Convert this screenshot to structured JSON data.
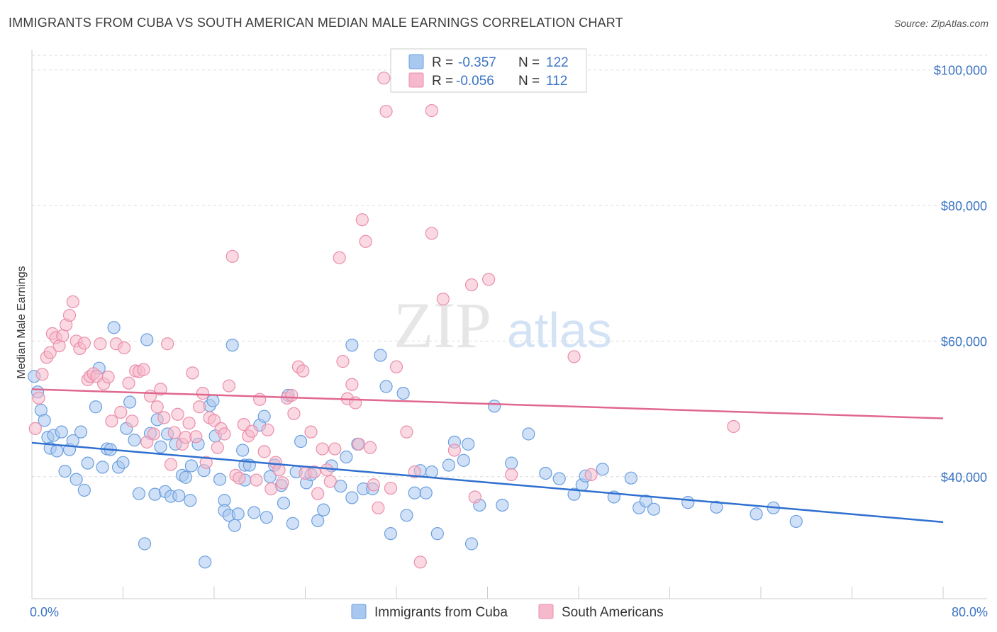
{
  "title": "IMMIGRANTS FROM CUBA VS SOUTH AMERICAN MEDIAN MALE EARNINGS CORRELATION CHART",
  "source": "Source: ZipAtlas.com",
  "watermark": {
    "zip": "ZIP",
    "atlas": "atlas"
  },
  "colors": {
    "blue_fill": "#a9c8f0",
    "blue_stroke": "#6b9fde",
    "blue_line": "#2f6fcf",
    "pink_fill": "#f6b9cb",
    "pink_stroke": "#ea8eac",
    "pink_line": "#e0678f",
    "tick_text": "#3b74c4",
    "grid": "#dddddd"
  },
  "legend": {
    "r_label": "R =",
    "n_label": "N =",
    "rows": [
      {
        "r": "-0.357",
        "n": "122",
        "color": "blue"
      },
      {
        "r": "-0.056",
        "n": "112",
        "color": "pink"
      }
    ]
  },
  "chart_data": {
    "type": "scatter",
    "xlabel": "",
    "ylabel": "Median Male Earnings",
    "xlim": [
      0,
      80
    ],
    "ylim": [
      22000,
      103000
    ],
    "x_tick_labels": [
      "0.0%",
      "80.0%"
    ],
    "y_ticks": [
      40000,
      60000,
      80000,
      100000
    ],
    "y_tick_labels": [
      "$40,000",
      "$60,000",
      "$80,000",
      "$100,000"
    ],
    "grid": true,
    "legend_position": "bottom",
    "series": [
      {
        "name": "Immigrants from Cuba",
        "color": "blue",
        "trend": {
          "x": [
            0,
            80
          ],
          "y": [
            45000,
            33300
          ]
        },
        "points": [
          [
            0.2,
            54800
          ],
          [
            0.5,
            52500
          ],
          [
            0.8,
            49800
          ],
          [
            1.1,
            48300
          ],
          [
            1.4,
            45800
          ],
          [
            1.6,
            44200
          ],
          [
            1.9,
            46100
          ],
          [
            2.2,
            43800
          ],
          [
            2.6,
            46600
          ],
          [
            2.9,
            40800
          ],
          [
            3.3,
            44000
          ],
          [
            3.6,
            45300
          ],
          [
            3.9,
            39600
          ],
          [
            4.3,
            46600
          ],
          [
            4.6,
            38000
          ],
          [
            4.9,
            42000
          ],
          [
            5.6,
            50300
          ],
          [
            5.9,
            56000
          ],
          [
            6.2,
            41400
          ],
          [
            6.6,
            44100
          ],
          [
            6.9,
            44000
          ],
          [
            7.2,
            62000
          ],
          [
            7.6,
            41400
          ],
          [
            8.0,
            42100
          ],
          [
            8.3,
            47100
          ],
          [
            8.6,
            51000
          ],
          [
            9.0,
            45400
          ],
          [
            9.4,
            37500
          ],
          [
            9.9,
            30100
          ],
          [
            10.1,
            60200
          ],
          [
            10.4,
            46400
          ],
          [
            10.8,
            37400
          ],
          [
            11.0,
            48400
          ],
          [
            11.3,
            44400
          ],
          [
            11.7,
            37800
          ],
          [
            11.9,
            46300
          ],
          [
            12.2,
            37100
          ],
          [
            12.6,
            44800
          ],
          [
            12.9,
            37200
          ],
          [
            13.2,
            40200
          ],
          [
            13.5,
            39900
          ],
          [
            13.9,
            36500
          ],
          [
            14.0,
            41600
          ],
          [
            14.6,
            44800
          ],
          [
            15.1,
            40900
          ],
          [
            15.2,
            27400
          ],
          [
            15.6,
            50500
          ],
          [
            15.9,
            51200
          ],
          [
            16.1,
            46000
          ],
          [
            16.5,
            39600
          ],
          [
            16.9,
            36500
          ],
          [
            16.9,
            35000
          ],
          [
            17.3,
            34300
          ],
          [
            17.6,
            59400
          ],
          [
            17.8,
            32800
          ],
          [
            18.1,
            34500
          ],
          [
            18.5,
            43900
          ],
          [
            18.7,
            39500
          ],
          [
            18.7,
            41700
          ],
          [
            19.1,
            41700
          ],
          [
            19.5,
            34700
          ],
          [
            20.0,
            47600
          ],
          [
            20.4,
            48900
          ],
          [
            20.6,
            34000
          ],
          [
            20.9,
            40000
          ],
          [
            21.3,
            41700
          ],
          [
            21.9,
            38700
          ],
          [
            22.1,
            36100
          ],
          [
            22.5,
            52000
          ],
          [
            22.9,
            33100
          ],
          [
            23.2,
            40700
          ],
          [
            23.6,
            45200
          ],
          [
            24.1,
            39100
          ],
          [
            24.5,
            40300
          ],
          [
            25.1,
            33500
          ],
          [
            25.6,
            35100
          ],
          [
            26.3,
            41600
          ],
          [
            27.1,
            38600
          ],
          [
            27.6,
            42900
          ],
          [
            28.1,
            59400
          ],
          [
            28.1,
            36900
          ],
          [
            28.6,
            44800
          ],
          [
            29.1,
            38200
          ],
          [
            29.9,
            38200
          ],
          [
            30.6,
            57900
          ],
          [
            31.1,
            53300
          ],
          [
            31.5,
            31600
          ],
          [
            32.6,
            52300
          ],
          [
            32.9,
            34300
          ],
          [
            33.6,
            37600
          ],
          [
            34.1,
            40900
          ],
          [
            34.6,
            37600
          ],
          [
            35.1,
            40700
          ],
          [
            35.6,
            31600
          ],
          [
            36.6,
            41700
          ],
          [
            37.1,
            45100
          ],
          [
            37.9,
            42400
          ],
          [
            38.3,
            44800
          ],
          [
            38.6,
            30100
          ],
          [
            39.3,
            35800
          ],
          [
            40.6,
            50400
          ],
          [
            41.3,
            35800
          ],
          [
            42.1,
            42000
          ],
          [
            43.6,
            46300
          ],
          [
            45.1,
            40500
          ],
          [
            46.3,
            39700
          ],
          [
            47.6,
            37400
          ],
          [
            48.3,
            38800
          ],
          [
            48.6,
            40100
          ],
          [
            50.1,
            41100
          ],
          [
            51.1,
            37000
          ],
          [
            52.6,
            39800
          ],
          [
            53.3,
            35400
          ],
          [
            53.9,
            36400
          ],
          [
            54.6,
            35200
          ],
          [
            57.6,
            36200
          ],
          [
            60.1,
            35500
          ],
          [
            63.6,
            34500
          ],
          [
            65.1,
            35400
          ],
          [
            67.1,
            33400
          ]
        ]
      },
      {
        "name": "South Americans",
        "color": "pink",
        "trend": {
          "x": [
            0,
            80
          ],
          "y": [
            52900,
            48600
          ]
        },
        "points": [
          [
            0.3,
            47100
          ],
          [
            0.6,
            51600
          ],
          [
            0.9,
            55100
          ],
          [
            1.3,
            57600
          ],
          [
            1.6,
            58300
          ],
          [
            1.8,
            61100
          ],
          [
            2.1,
            60500
          ],
          [
            2.4,
            59300
          ],
          [
            2.7,
            60800
          ],
          [
            3.0,
            62400
          ],
          [
            3.3,
            63800
          ],
          [
            3.6,
            65800
          ],
          [
            3.9,
            60000
          ],
          [
            4.2,
            58900
          ],
          [
            4.6,
            59700
          ],
          [
            4.9,
            54300
          ],
          [
            5.1,
            54800
          ],
          [
            5.4,
            55200
          ],
          [
            5.7,
            54800
          ],
          [
            6.0,
            59600
          ],
          [
            6.3,
            53700
          ],
          [
            6.7,
            54700
          ],
          [
            7.0,
            48200
          ],
          [
            7.4,
            59600
          ],
          [
            7.8,
            49500
          ],
          [
            8.1,
            59000
          ],
          [
            8.5,
            53800
          ],
          [
            8.8,
            48200
          ],
          [
            9.1,
            55600
          ],
          [
            9.4,
            55500
          ],
          [
            9.8,
            55800
          ],
          [
            10.1,
            45100
          ],
          [
            10.4,
            51900
          ],
          [
            10.7,
            46300
          ],
          [
            11.0,
            50300
          ],
          [
            11.3,
            52900
          ],
          [
            11.6,
            48700
          ],
          [
            11.9,
            59600
          ],
          [
            12.2,
            41800
          ],
          [
            12.5,
            46500
          ],
          [
            12.8,
            49200
          ],
          [
            13.2,
            44800
          ],
          [
            13.5,
            45800
          ],
          [
            13.8,
            47900
          ],
          [
            14.1,
            55300
          ],
          [
            14.4,
            45900
          ],
          [
            14.7,
            50300
          ],
          [
            15.0,
            52300
          ],
          [
            15.3,
            42100
          ],
          [
            15.6,
            48700
          ],
          [
            16.0,
            48300
          ],
          [
            16.3,
            44300
          ],
          [
            16.6,
            47100
          ],
          [
            16.9,
            46300
          ],
          [
            17.3,
            53400
          ],
          [
            17.6,
            72500
          ],
          [
            17.9,
            40200
          ],
          [
            18.2,
            39800
          ],
          [
            18.6,
            47700
          ],
          [
            19.0,
            46000
          ],
          [
            19.3,
            46700
          ],
          [
            19.7,
            39500
          ],
          [
            20.0,
            51400
          ],
          [
            20.4,
            43700
          ],
          [
            20.7,
            46900
          ],
          [
            21.0,
            38200
          ],
          [
            21.4,
            42100
          ],
          [
            21.7,
            41000
          ],
          [
            22.0,
            39100
          ],
          [
            22.4,
            51600
          ],
          [
            22.8,
            52000
          ],
          [
            23.0,
            49300
          ],
          [
            23.4,
            56200
          ],
          [
            23.8,
            55600
          ],
          [
            24.0,
            40500
          ],
          [
            24.5,
            46600
          ],
          [
            24.8,
            40700
          ],
          [
            25.1,
            37500
          ],
          [
            25.5,
            44100
          ],
          [
            25.9,
            41000
          ],
          [
            26.2,
            39300
          ],
          [
            26.6,
            44100
          ],
          [
            27.0,
            72300
          ],
          [
            27.3,
            57000
          ],
          [
            27.7,
            51500
          ],
          [
            28.1,
            53600
          ],
          [
            28.4,
            50900
          ],
          [
            28.7,
            44800
          ],
          [
            29.0,
            77900
          ],
          [
            29.3,
            74700
          ],
          [
            29.7,
            44300
          ],
          [
            30.0,
            38800
          ],
          [
            30.4,
            35400
          ],
          [
            30.9,
            98800
          ],
          [
            31.1,
            93900
          ],
          [
            31.5,
            38300
          ],
          [
            32.0,
            56200
          ],
          [
            32.9,
            46600
          ],
          [
            33.6,
            40700
          ],
          [
            34.1,
            27400
          ],
          [
            35.1,
            94000
          ],
          [
            35.1,
            75900
          ],
          [
            36.1,
            66200
          ],
          [
            37.1,
            43900
          ],
          [
            38.6,
            68300
          ],
          [
            38.9,
            37000
          ],
          [
            40.1,
            69100
          ],
          [
            42.1,
            40300
          ],
          [
            47.6,
            57700
          ],
          [
            49.1,
            40300
          ],
          [
            61.6,
            47400
          ]
        ]
      }
    ]
  },
  "bottom_legend": [
    "Immigrants from Cuba",
    "South Americans"
  ]
}
